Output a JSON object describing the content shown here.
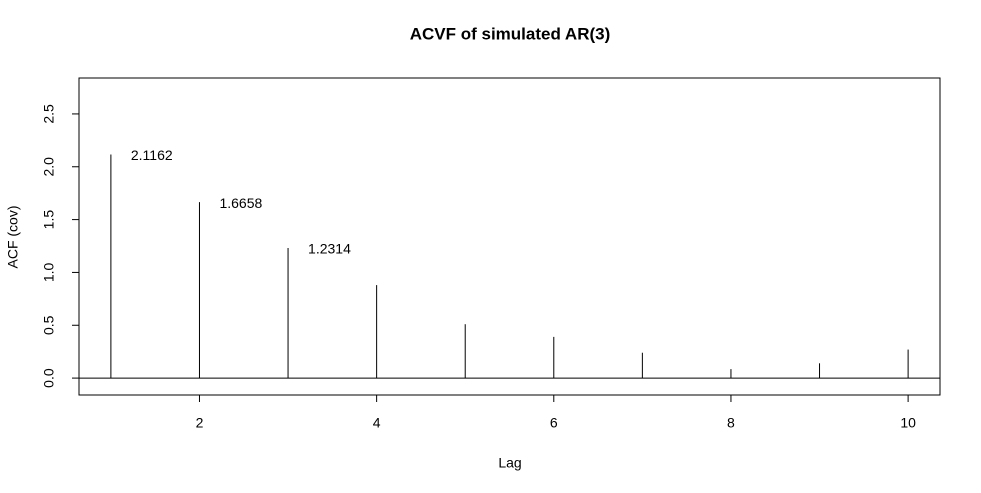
{
  "chart_data": {
    "type": "spike",
    "title": "ACVF of simulated AR(3)",
    "x_label": "Lag",
    "y_label": "ACF (cov)",
    "x": [
      1,
      2,
      3,
      4,
      5,
      6,
      7,
      8,
      9,
      10
    ],
    "values": [
      2.1162,
      1.6658,
      1.2314,
      0.88,
      0.51,
      0.39,
      0.24,
      0.085,
      0.14,
      0.27
    ],
    "value_labels": [
      "2.1162",
      "1.6658",
      "1.2314",
      null,
      null,
      null,
      null,
      null,
      null,
      null
    ],
    "color": "#000000",
    "hline": 0,
    "xlim": [
      0.64,
      10.36
    ],
    "xticks": [
      2,
      4,
      6,
      8,
      10
    ],
    "ylim": [
      -0.16,
      2.84
    ],
    "yticks": [
      {
        "value": 0,
        "label": "0.0"
      },
      0.5,
      {
        "value": 1,
        "label": "1.0"
      },
      1.5,
      {
        "value": 2,
        "label": "2.0"
      },
      2.5
    ]
  }
}
